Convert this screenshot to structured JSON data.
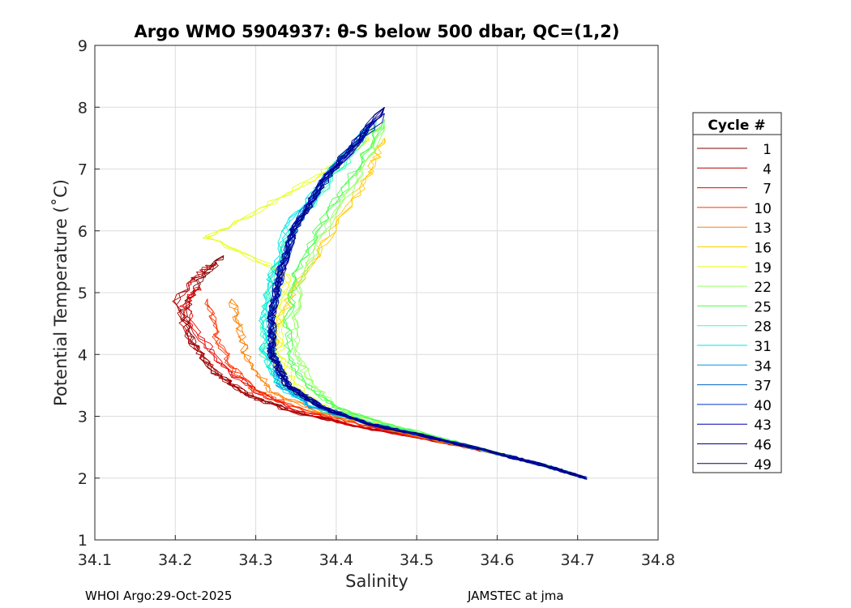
{
  "chart_data": {
    "type": "line",
    "title": "Argo WMO 5904937: θ-S below 500 dbar,  QC=(1,2)",
    "xlabel": "Salinity",
    "ylabel": "Potential Temperature (˚C)",
    "xlim": [
      34.1,
      34.8
    ],
    "ylim": [
      1,
      9
    ],
    "xticks": [
      "34.1",
      "34.2",
      "34.3",
      "34.4",
      "34.5",
      "34.6",
      "34.7",
      "34.8"
    ],
    "yticks": [
      "1",
      "2",
      "3",
      "4",
      "5",
      "6",
      "7",
      "8",
      "9"
    ],
    "grid": true,
    "legend": {
      "title": "Cycle #",
      "placement": "right"
    },
    "series": [
      {
        "name": "1",
        "color": "#800000",
        "x": [
          34.71,
          34.66,
          34.6,
          34.52,
          34.42,
          34.34,
          34.29,
          34.25,
          34.22,
          34.21,
          34.23,
          34.26
        ],
        "y": [
          2.0,
          2.2,
          2.4,
          2.62,
          2.85,
          3.1,
          3.35,
          3.7,
          4.2,
          4.7,
          5.2,
          5.6
        ]
      },
      {
        "name": "4",
        "color": "#b30000",
        "x": [
          34.71,
          34.66,
          34.6,
          34.52,
          34.42,
          34.34,
          34.29,
          34.25,
          34.22,
          34.2,
          34.22,
          34.25
        ],
        "y": [
          2.0,
          2.2,
          2.4,
          2.62,
          2.85,
          3.1,
          3.35,
          3.7,
          4.2,
          4.8,
          5.2,
          5.5
        ]
      },
      {
        "name": "7",
        "color": "#e60000",
        "x": [
          34.71,
          34.66,
          34.6,
          34.52,
          34.42,
          34.35,
          34.3,
          34.26,
          34.23,
          34.21,
          34.23
        ],
        "y": [
          2.0,
          2.2,
          2.4,
          2.62,
          2.86,
          3.1,
          3.4,
          3.8,
          4.3,
          4.8,
          5.1
        ]
      },
      {
        "name": "10",
        "color": "#ff3300",
        "x": [
          34.71,
          34.66,
          34.6,
          34.52,
          34.43,
          34.36,
          34.3,
          34.27,
          34.25,
          34.24
        ],
        "y": [
          2.0,
          2.2,
          2.4,
          2.62,
          2.87,
          3.1,
          3.4,
          3.8,
          4.3,
          4.9
        ]
      },
      {
        "name": "13",
        "color": "#ff8000",
        "x": [
          34.71,
          34.66,
          34.6,
          34.52,
          34.44,
          34.37,
          34.32,
          34.29,
          34.28,
          34.27
        ],
        "y": [
          2.0,
          2.2,
          2.4,
          2.62,
          2.87,
          3.1,
          3.4,
          3.9,
          4.4,
          4.9
        ]
      },
      {
        "name": "16",
        "color": "#ffcc00",
        "x": [
          34.71,
          34.66,
          34.6,
          34.53,
          34.45,
          34.38,
          34.34,
          34.32,
          34.33,
          34.36,
          34.4,
          34.44,
          34.46
        ],
        "y": [
          2.0,
          2.2,
          2.4,
          2.62,
          2.88,
          3.1,
          3.5,
          4.0,
          4.6,
          5.3,
          6.1,
          6.9,
          7.5
        ]
      },
      {
        "name": "19",
        "color": "#e6ff1a",
        "x": [
          34.71,
          34.66,
          34.6,
          34.53,
          34.45,
          34.39,
          34.35,
          34.33,
          34.33,
          34.34,
          34.24,
          34.3,
          34.38,
          34.43,
          34.45
        ],
        "y": [
          2.0,
          2.2,
          2.4,
          2.62,
          2.88,
          3.1,
          3.5,
          4.0,
          4.6,
          5.3,
          5.9,
          6.3,
          6.9,
          7.4,
          7.7
        ]
      },
      {
        "name": "22",
        "color": "#99ff66",
        "x": [
          34.71,
          34.66,
          34.6,
          34.53,
          34.46,
          34.4,
          34.37,
          34.35,
          34.35,
          34.36,
          34.39,
          34.43,
          34.46
        ],
        "y": [
          2.0,
          2.2,
          2.4,
          2.62,
          2.88,
          3.15,
          3.5,
          4.0,
          4.6,
          5.3,
          6.1,
          6.9,
          7.7
        ]
      },
      {
        "name": "25",
        "color": "#4dff4d",
        "x": [
          34.71,
          34.66,
          34.6,
          34.54,
          34.46,
          34.4,
          34.36,
          34.34,
          34.34,
          34.35,
          34.38,
          34.42,
          34.46
        ],
        "y": [
          2.0,
          2.2,
          2.4,
          2.62,
          2.88,
          3.15,
          3.5,
          4.0,
          4.6,
          5.3,
          6.1,
          6.9,
          7.8
        ]
      },
      {
        "name": "28",
        "color": "#33ffb3",
        "x": [
          34.71,
          34.66,
          34.6,
          34.53,
          34.45,
          34.38,
          34.33,
          34.31,
          34.31,
          34.32,
          34.35,
          34.4,
          34.45
        ],
        "y": [
          2.0,
          2.2,
          2.4,
          2.62,
          2.88,
          3.15,
          3.5,
          4.0,
          4.6,
          5.3,
          6.1,
          6.9,
          7.8
        ]
      },
      {
        "name": "31",
        "color": "#00e6e6",
        "x": [
          34.71,
          34.66,
          34.6,
          34.53,
          34.44,
          34.37,
          34.33,
          34.31,
          34.31,
          34.32,
          34.34,
          34.39,
          34.44
        ],
        "y": [
          2.0,
          2.2,
          2.4,
          2.62,
          2.88,
          3.15,
          3.5,
          4.0,
          4.6,
          5.3,
          6.1,
          6.9,
          7.7
        ]
      },
      {
        "name": "34",
        "color": "#0099e6",
        "x": [
          34.71,
          34.66,
          34.6,
          34.53,
          34.44,
          34.37,
          34.33,
          34.32,
          34.32,
          34.33,
          34.35,
          34.39,
          34.44
        ],
        "y": [
          2.0,
          2.2,
          2.4,
          2.62,
          2.88,
          3.15,
          3.5,
          4.0,
          4.6,
          5.3,
          6.1,
          6.9,
          7.7
        ]
      },
      {
        "name": "37",
        "color": "#0066cc",
        "x": [
          34.71,
          34.66,
          34.6,
          34.53,
          34.44,
          34.38,
          34.34,
          34.32,
          34.32,
          34.33,
          34.35,
          34.39,
          34.45
        ],
        "y": [
          2.0,
          2.2,
          2.4,
          2.62,
          2.88,
          3.15,
          3.5,
          4.0,
          4.6,
          5.3,
          6.1,
          6.9,
          7.8
        ]
      },
      {
        "name": "40",
        "color": "#0033cc",
        "x": [
          34.71,
          34.66,
          34.6,
          34.53,
          34.44,
          34.38,
          34.34,
          34.32,
          34.32,
          34.33,
          34.35,
          34.39,
          34.45
        ],
        "y": [
          2.0,
          2.2,
          2.4,
          2.62,
          2.88,
          3.15,
          3.5,
          4.0,
          4.6,
          5.3,
          6.1,
          6.9,
          7.8
        ]
      },
      {
        "name": "43",
        "color": "#0000b3",
        "x": [
          34.71,
          34.66,
          34.6,
          34.53,
          34.44,
          34.38,
          34.34,
          34.32,
          34.32,
          34.33,
          34.35,
          34.39,
          34.46
        ],
        "y": [
          2.0,
          2.2,
          2.4,
          2.62,
          2.88,
          3.15,
          3.5,
          4.0,
          4.6,
          5.3,
          6.1,
          6.9,
          7.9
        ]
      },
      {
        "name": "46",
        "color": "#000099",
        "x": [
          34.71,
          34.66,
          34.6,
          34.53,
          34.44,
          34.38,
          34.34,
          34.32,
          34.32,
          34.33,
          34.35,
          34.39,
          34.46
        ],
        "y": [
          2.0,
          2.2,
          2.4,
          2.62,
          2.88,
          3.15,
          3.5,
          4.0,
          4.6,
          5.3,
          6.1,
          6.9,
          8.0
        ]
      },
      {
        "name": "49",
        "color": "#000080",
        "x": [
          34.71,
          34.66,
          34.6,
          34.53,
          34.44,
          34.38,
          34.34,
          34.32,
          34.32,
          34.33,
          34.35,
          34.39,
          34.46
        ],
        "y": [
          2.0,
          2.2,
          2.4,
          2.62,
          2.88,
          3.15,
          3.5,
          4.0,
          4.6,
          5.3,
          6.1,
          6.9,
          8.0
        ]
      }
    ]
  },
  "footer": {
    "left": "WHOI Argo:29-Oct-2025",
    "right": "JAMSTEC at jma"
  }
}
